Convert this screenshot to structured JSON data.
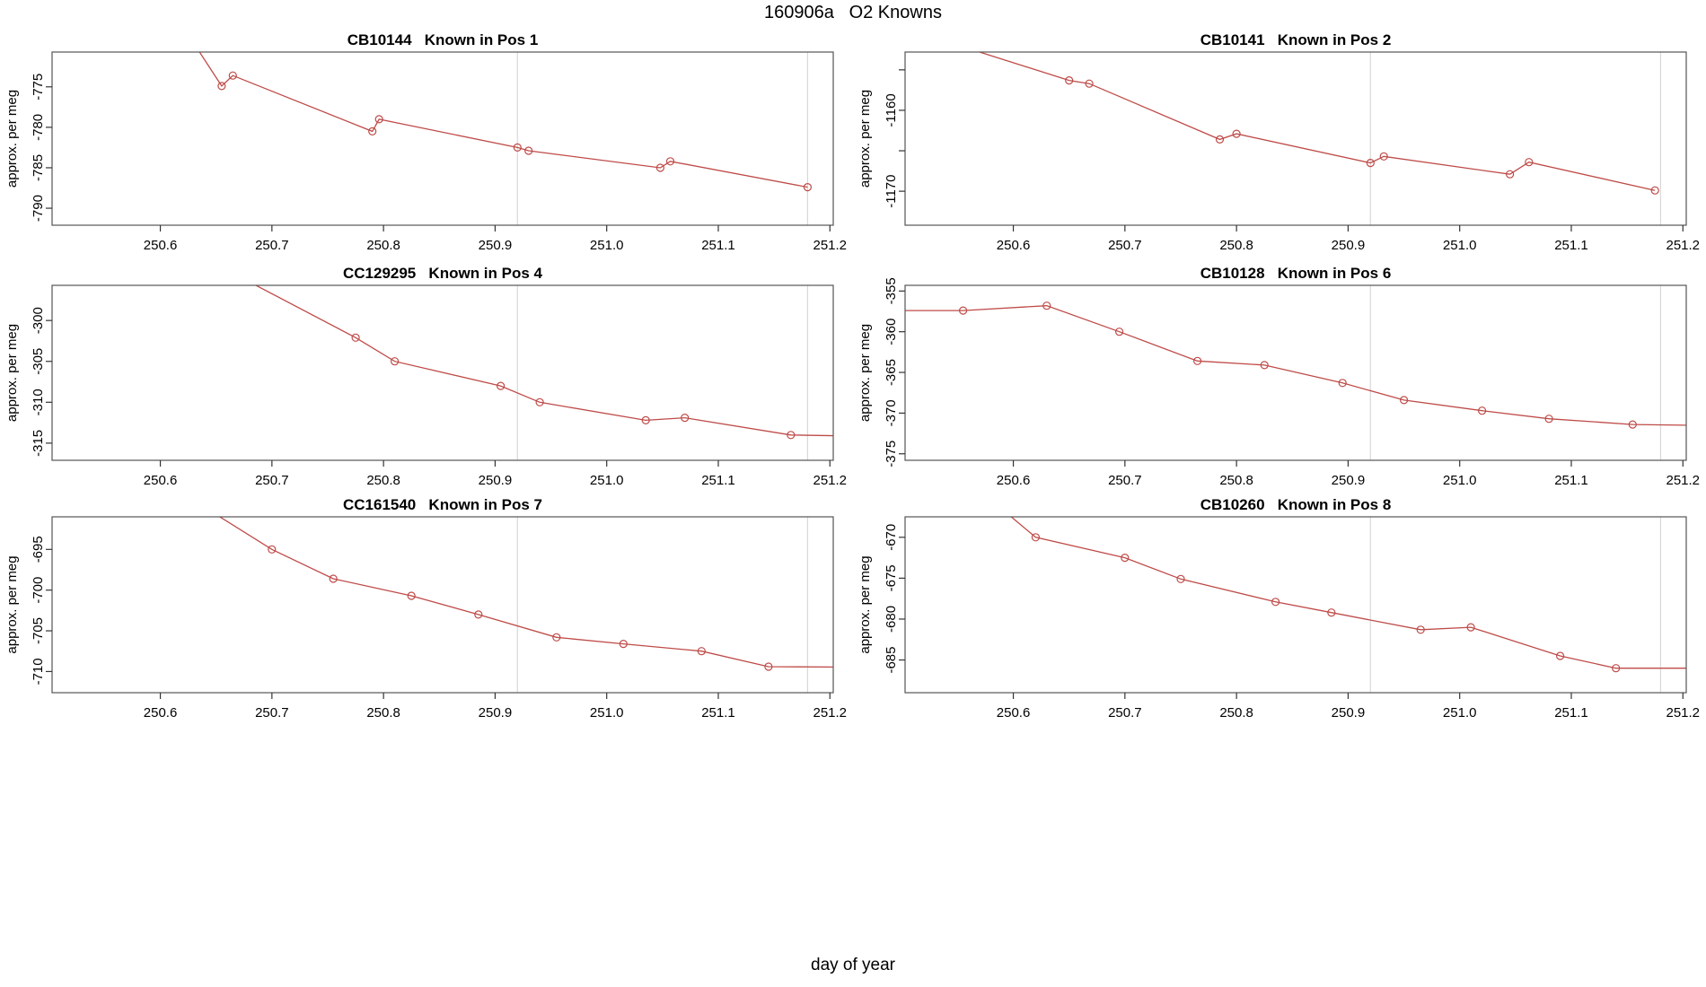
{
  "page_title": "160906a   O2 Knowns",
  "colors": {
    "line": "#BE4B48",
    "marker": "#BE4B48",
    "reference_line": "#D8D8D8",
    "box": "#555555",
    "tick": "#333333",
    "text": "#000000",
    "background": "#FFFFFF"
  },
  "chart_data": {
    "type": "line",
    "title": "160906a   O2 Knowns",
    "xlabel": "day of year",
    "ylabel": "approx. per meg",
    "x_range": [
      250.503,
      251.203
    ],
    "x_ticks": [
      250.6,
      250.7,
      250.8,
      250.9,
      251.0,
      251.1,
      251.2
    ],
    "x_tick_labels": [
      "250.6",
      "250.7",
      "250.8",
      "250.9",
      "251.0",
      "251.1",
      "251.2"
    ],
    "x_reference_lines": [
      250.92,
      251.18
    ],
    "grid": false,
    "legend": "none",
    "subplots": [
      {
        "id": "CB10144",
        "position_label": "Known in Pos 1",
        "ylabel": "approx. per meg",
        "ylim": [
          -770.7,
          -792.1
        ],
        "yticks": [
          {
            "v": -775,
            "label": "-775"
          },
          {
            "v": -780,
            "label": "-780"
          },
          {
            "v": -785,
            "label": "-785"
          },
          {
            "v": -790,
            "label": "-790"
          }
        ],
        "points": [
          [
            250.62,
            -767.5
          ],
          [
            250.655,
            -774.9
          ],
          [
            250.665,
            -773.6
          ],
          [
            250.79,
            -780.5
          ],
          [
            250.796,
            -779.0
          ],
          [
            250.92,
            -782.5
          ],
          [
            250.93,
            -782.9
          ],
          [
            251.048,
            -785.0
          ],
          [
            251.057,
            -784.2
          ],
          [
            251.18,
            -787.4
          ]
        ]
      },
      {
        "id": "CB10141",
        "position_label": "Known in Pos 2",
        "ylabel": "approx. per meg",
        "ylim": [
          -1152.8,
          -1174.2
        ],
        "yticks": [
          {
            "v": -1155,
            "label": ""
          },
          {
            "v": -1160,
            "label": "-1160"
          },
          {
            "v": -1165,
            "label": ""
          },
          {
            "v": -1170,
            "label": "-1170"
          }
        ],
        "points": [
          [
            250.54,
            -1151.5
          ],
          [
            250.65,
            -1156.3
          ],
          [
            250.668,
            -1156.7
          ],
          [
            250.785,
            -1163.6
          ],
          [
            250.8,
            -1162.9
          ],
          [
            250.92,
            -1166.5
          ],
          [
            250.932,
            -1165.7
          ],
          [
            251.045,
            -1167.9
          ],
          [
            251.062,
            -1166.4
          ],
          [
            251.175,
            -1169.9
          ]
        ]
      },
      {
        "id": "CC129295",
        "position_label": "Known in Pos 4",
        "ylabel": "approx. per meg",
        "ylim": [
          -295.7,
          -317.1
        ],
        "yticks": [
          {
            "v": -300,
            "label": "-300"
          },
          {
            "v": -305,
            "label": "-305"
          },
          {
            "v": -310,
            "label": "-310"
          },
          {
            "v": -315,
            "label": "-315"
          }
        ],
        "points": [
          [
            250.655,
            -293.5
          ],
          [
            250.775,
            -302.1
          ],
          [
            250.81,
            -305.0
          ],
          [
            250.905,
            -308.0
          ],
          [
            250.94,
            -310.0
          ],
          [
            251.035,
            -312.2
          ],
          [
            251.07,
            -311.9
          ],
          [
            251.165,
            -314.0
          ],
          [
            251.21,
            -314.1
          ]
        ]
      },
      {
        "id": "CB10128",
        "position_label": "Known in Pos 6",
        "ylabel": "approx. per meg",
        "ylim": [
          -354.3,
          -375.8
        ],
        "yticks": [
          {
            "v": -355,
            "label": "-355"
          },
          {
            "v": -360,
            "label": "-360"
          },
          {
            "v": -365,
            "label": "-365"
          },
          {
            "v": -370,
            "label": "-370"
          },
          {
            "v": -375,
            "label": "-375"
          }
        ],
        "points": [
          [
            250.49,
            -357.4
          ],
          [
            250.555,
            -357.4
          ],
          [
            250.63,
            -356.8
          ],
          [
            250.695,
            -360.0
          ],
          [
            250.765,
            -363.6
          ],
          [
            250.825,
            -364.1
          ],
          [
            250.895,
            -366.3
          ],
          [
            250.95,
            -368.4
          ],
          [
            251.02,
            -369.7
          ],
          [
            251.08,
            -370.7
          ],
          [
            251.155,
            -371.4
          ],
          [
            251.21,
            -371.5
          ]
        ]
      },
      {
        "id": "CC161540",
        "position_label": "Known in Pos 7",
        "ylabel": "approx. per meg",
        "ylim": [
          -691.0,
          -712.6
        ],
        "yticks": [
          {
            "v": -695,
            "label": "-695"
          },
          {
            "v": -700,
            "label": "-700"
          },
          {
            "v": -705,
            "label": "-705"
          },
          {
            "v": -710,
            "label": "-710"
          }
        ],
        "points": [
          [
            250.63,
            -689.0
          ],
          [
            250.7,
            -695.0
          ],
          [
            250.755,
            -698.6
          ],
          [
            250.825,
            -700.7
          ],
          [
            250.885,
            -703.0
          ],
          [
            250.955,
            -705.8
          ],
          [
            251.015,
            -706.6
          ],
          [
            251.085,
            -707.5
          ],
          [
            251.145,
            -709.4
          ],
          [
            251.21,
            -709.45
          ]
        ]
      },
      {
        "id": "CB10260",
        "position_label": "Known in Pos 8",
        "ylabel": "approx. per meg",
        "ylim": [
          -667.5,
          -689.0
        ],
        "yticks": [
          {
            "v": -670,
            "label": "-670"
          },
          {
            "v": -675,
            "label": "-675"
          },
          {
            "v": -680,
            "label": "-680"
          },
          {
            "v": -685,
            "label": "-685"
          }
        ],
        "points": [
          [
            250.585,
            -666.0
          ],
          [
            250.62,
            -670.0
          ],
          [
            250.7,
            -672.5
          ],
          [
            250.75,
            -675.1
          ],
          [
            250.835,
            -677.9
          ],
          [
            250.885,
            -679.2
          ],
          [
            250.965,
            -681.3
          ],
          [
            251.01,
            -681.0
          ],
          [
            251.09,
            -684.5
          ],
          [
            251.14,
            -686.0
          ],
          [
            251.21,
            -686.0
          ]
        ]
      }
    ]
  }
}
